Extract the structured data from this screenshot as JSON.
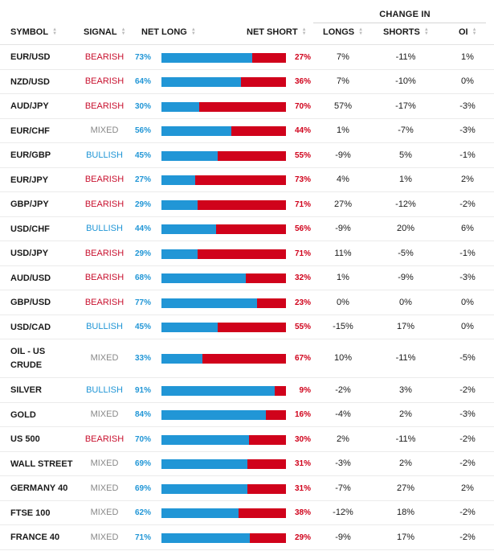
{
  "header": {
    "group_label": "CHANGE IN",
    "col_symbol": "SYMBOL",
    "col_signal": "SIGNAL",
    "col_net_long": "NET LONG",
    "col_net_short": "NET SHORT",
    "col_longs": "LONGS",
    "col_shorts": "SHORTS",
    "col_oi": "OI"
  },
  "colors": {
    "long_blue": "#2196d6",
    "short_red": "#d0021b",
    "bearish": "#c8102e",
    "bullish": "#2196d6",
    "mixed": "#888888"
  },
  "rows": [
    {
      "symbol": "EUR/USD",
      "signal": "BEARISH",
      "net_long": "73%",
      "net_short": "27%",
      "longs": "7%",
      "shorts": "-11%",
      "oi": "1%"
    },
    {
      "symbol": "NZD/USD",
      "signal": "BEARISH",
      "net_long": "64%",
      "net_short": "36%",
      "longs": "7%",
      "shorts": "-10%",
      "oi": "0%"
    },
    {
      "symbol": "AUD/JPY",
      "signal": "BEARISH",
      "net_long": "30%",
      "net_short": "70%",
      "longs": "57%",
      "shorts": "-17%",
      "oi": "-3%"
    },
    {
      "symbol": "EUR/CHF",
      "signal": "MIXED",
      "net_long": "56%",
      "net_short": "44%",
      "longs": "1%",
      "shorts": "-7%",
      "oi": "-3%"
    },
    {
      "symbol": "EUR/GBP",
      "signal": "BULLISH",
      "net_long": "45%",
      "net_short": "55%",
      "longs": "-9%",
      "shorts": "5%",
      "oi": "-1%"
    },
    {
      "symbol": "EUR/JPY",
      "signal": "BEARISH",
      "net_long": "27%",
      "net_short": "73%",
      "longs": "4%",
      "shorts": "1%",
      "oi": "2%"
    },
    {
      "symbol": "GBP/JPY",
      "signal": "BEARISH",
      "net_long": "29%",
      "net_short": "71%",
      "longs": "27%",
      "shorts": "-12%",
      "oi": "-2%"
    },
    {
      "symbol": "USD/CHF",
      "signal": "BULLISH",
      "net_long": "44%",
      "net_short": "56%",
      "longs": "-9%",
      "shorts": "20%",
      "oi": "6%"
    },
    {
      "symbol": "USD/JPY",
      "signal": "BEARISH",
      "net_long": "29%",
      "net_short": "71%",
      "longs": "11%",
      "shorts": "-5%",
      "oi": "-1%"
    },
    {
      "symbol": "AUD/USD",
      "signal": "BEARISH",
      "net_long": "68%",
      "net_short": "32%",
      "longs": "1%",
      "shorts": "-9%",
      "oi": "-3%"
    },
    {
      "symbol": "GBP/USD",
      "signal": "BEARISH",
      "net_long": "77%",
      "net_short": "23%",
      "longs": "0%",
      "shorts": "0%",
      "oi": "0%"
    },
    {
      "symbol": "USD/CAD",
      "signal": "BULLISH",
      "net_long": "45%",
      "net_short": "55%",
      "longs": "-15%",
      "shorts": "17%",
      "oi": "0%"
    },
    {
      "symbol": "OIL - US CRUDE",
      "signal": "MIXED",
      "net_long": "33%",
      "net_short": "67%",
      "longs": "10%",
      "shorts": "-11%",
      "oi": "-5%"
    },
    {
      "symbol": "SILVER",
      "signal": "BULLISH",
      "net_long": "91%",
      "net_short": "9%",
      "longs": "-2%",
      "shorts": "3%",
      "oi": "-2%"
    },
    {
      "symbol": "GOLD",
      "signal": "MIXED",
      "net_long": "84%",
      "net_short": "16%",
      "longs": "-4%",
      "shorts": "2%",
      "oi": "-3%"
    },
    {
      "symbol": "US 500",
      "signal": "BEARISH",
      "net_long": "70%",
      "net_short": "30%",
      "longs": "2%",
      "shorts": "-11%",
      "oi": "-2%"
    },
    {
      "symbol": "WALL STREET",
      "signal": "MIXED",
      "net_long": "69%",
      "net_short": "31%",
      "longs": "-3%",
      "shorts": "2%",
      "oi": "-2%"
    },
    {
      "symbol": "GERMANY 40",
      "signal": "MIXED",
      "net_long": "69%",
      "net_short": "31%",
      "longs": "-7%",
      "shorts": "27%",
      "oi": "2%"
    },
    {
      "symbol": "FTSE 100",
      "signal": "MIXED",
      "net_long": "62%",
      "net_short": "38%",
      "longs": "-12%",
      "shorts": "18%",
      "oi": "-2%"
    },
    {
      "symbol": "FRANCE 40",
      "signal": "MIXED",
      "net_long": "71%",
      "net_short": "29%",
      "longs": "-9%",
      "shorts": "17%",
      "oi": "-2%"
    }
  ]
}
